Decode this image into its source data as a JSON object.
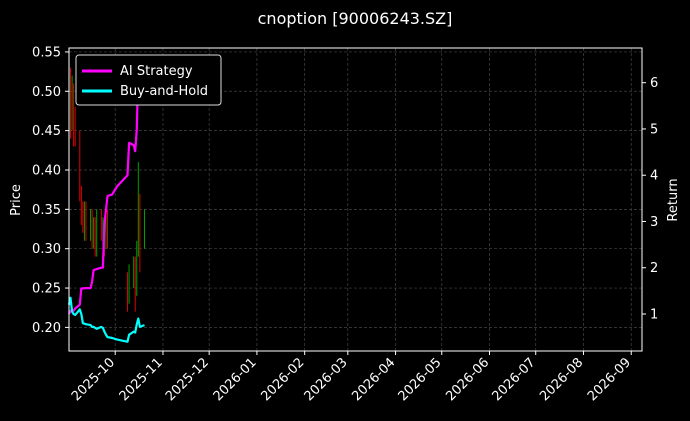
{
  "chart_data": {
    "type": "line",
    "title": "cnoption [90006243.SZ]",
    "ylabel": "Price",
    "y2label": "Return",
    "legend_placement": "top-left",
    "grid": true,
    "x_range": [
      "2025-09-01",
      "2026-09-08"
    ],
    "ylim": [
      0.17,
      0.555
    ],
    "y2lim": [
      0.2,
      6.75
    ],
    "x_ticks": [
      "2025-10",
      "2025-11",
      "2025-12",
      "2026-01",
      "2026-02",
      "2026-03",
      "2026-04",
      "2026-05",
      "2026-06",
      "2026-07",
      "2026-08",
      "2026-09"
    ],
    "y_ticks": [
      "0.20",
      "0.25",
      "0.30",
      "0.35",
      "0.40",
      "0.45",
      "0.50",
      "0.55"
    ],
    "y2_ticks": [
      "1",
      "2",
      "3",
      "4",
      "5",
      "6"
    ],
    "colors": {
      "background": "#000000",
      "grid": "#444444",
      "up": "#00a000",
      "down": "#e00000",
      "ai": "#ff00ff",
      "bh": "#00ffff"
    },
    "candles": [
      {
        "date": "2025-09-01",
        "open": 0.42,
        "close": 0.52,
        "high": 0.54,
        "low": 0.4
      },
      {
        "date": "2025-09-02",
        "open": 0.52,
        "close": 0.47,
        "high": 0.53,
        "low": 0.44
      },
      {
        "date": "2025-09-03",
        "open": 0.47,
        "close": 0.5,
        "high": 0.52,
        "low": 0.45
      },
      {
        "date": "2025-09-04",
        "open": 0.5,
        "close": 0.46,
        "high": 0.51,
        "low": 0.43
      },
      {
        "date": "2025-09-05",
        "open": 0.46,
        "close": 0.44,
        "high": 0.48,
        "low": 0.43
      },
      {
        "date": "2025-09-08",
        "open": 0.44,
        "close": 0.38,
        "high": 0.45,
        "low": 0.36
      },
      {
        "date": "2025-09-09",
        "open": 0.37,
        "close": 0.35,
        "high": 0.38,
        "low": 0.33
      },
      {
        "date": "2025-09-10",
        "open": 0.35,
        "close": 0.33,
        "high": 0.36,
        "low": 0.32
      },
      {
        "date": "2025-09-11",
        "open": 0.33,
        "close": 0.35,
        "high": 0.36,
        "low": 0.31
      },
      {
        "date": "2025-09-12",
        "open": 0.35,
        "close": 0.32,
        "high": 0.36,
        "low": 0.31
      },
      {
        "date": "2025-09-15",
        "open": 0.32,
        "close": 0.34,
        "high": 0.35,
        "low": 0.31
      },
      {
        "date": "2025-09-16",
        "open": 0.34,
        "close": 0.31,
        "high": 0.35,
        "low": 0.3
      },
      {
        "date": "2025-09-17",
        "open": 0.31,
        "close": 0.33,
        "high": 0.34,
        "low": 0.3
      },
      {
        "date": "2025-09-18",
        "open": 0.33,
        "close": 0.3,
        "high": 0.34,
        "low": 0.29
      },
      {
        "date": "2025-09-19",
        "open": 0.3,
        "close": 0.34,
        "high": 0.35,
        "low": 0.29
      },
      {
        "date": "2025-09-22",
        "open": 0.34,
        "close": 0.32,
        "high": 0.35,
        "low": 0.31
      },
      {
        "date": "2025-09-23",
        "open": 0.32,
        "close": 0.33,
        "high": 0.34,
        "low": 0.3
      },
      {
        "date": "2025-09-24",
        "open": 0.33,
        "close": 0.31,
        "high": 0.34,
        "low": 0.29
      },
      {
        "date": "2025-09-25",
        "open": 0.31,
        "close": 0.34,
        "high": 0.35,
        "low": 0.3
      },
      {
        "date": "2025-09-26",
        "open": 0.34,
        "close": 0.31,
        "high": 0.35,
        "low": 0.3
      },
      {
        "date": "2025-10-09",
        "open": 0.26,
        "close": 0.24,
        "high": 0.27,
        "low": 0.22
      },
      {
        "date": "2025-10-10",
        "open": 0.24,
        "close": 0.26,
        "high": 0.28,
        "low": 0.23
      },
      {
        "date": "2025-10-13",
        "open": 0.26,
        "close": 0.28,
        "high": 0.29,
        "low": 0.25
      },
      {
        "date": "2025-10-14",
        "open": 0.28,
        "close": 0.25,
        "high": 0.29,
        "low": 0.22
      },
      {
        "date": "2025-10-15",
        "open": 0.25,
        "close": 0.3,
        "high": 0.31,
        "low": 0.24
      },
      {
        "date": "2025-10-16",
        "open": 0.3,
        "close": 0.39,
        "high": 0.41,
        "low": 0.29
      },
      {
        "date": "2025-10-17",
        "open": 0.36,
        "close": 0.33,
        "high": 0.37,
        "low": 0.27
      },
      {
        "date": "2025-10-20",
        "open": 0.31,
        "close": 0.34,
        "high": 0.35,
        "low": 0.3
      }
    ],
    "series": [
      {
        "name": "AI Strategy",
        "values": [
          {
            "date": "2025-09-01",
            "value": 1.0
          },
          {
            "date": "2025-09-02",
            "value": 1.07
          },
          {
            "date": "2025-09-04",
            "value": 1.07
          },
          {
            "date": "2025-09-05",
            "value": 1.12
          },
          {
            "date": "2025-09-08",
            "value": 1.2
          },
          {
            "date": "2025-09-09",
            "value": 1.55
          },
          {
            "date": "2025-09-12",
            "value": 1.56
          },
          {
            "date": "2025-09-15",
            "value": 1.56
          },
          {
            "date": "2025-09-16",
            "value": 1.7
          },
          {
            "date": "2025-09-17",
            "value": 1.95
          },
          {
            "date": "2025-09-19",
            "value": 1.97
          },
          {
            "date": "2025-09-22",
            "value": 2.0
          },
          {
            "date": "2025-09-23",
            "value": 2.0
          },
          {
            "date": "2025-09-24",
            "value": 2.95
          },
          {
            "date": "2025-09-25",
            "value": 3.25
          },
          {
            "date": "2025-09-26",
            "value": 3.55
          },
          {
            "date": "2025-09-29",
            "value": 3.58
          },
          {
            "date": "2025-10-02",
            "value": 3.75
          },
          {
            "date": "2025-10-09",
            "value": 4.0
          },
          {
            "date": "2025-10-10",
            "value": 4.7
          },
          {
            "date": "2025-10-13",
            "value": 4.65
          },
          {
            "date": "2025-10-14",
            "value": 4.52
          },
          {
            "date": "2025-10-15",
            "value": 5.0
          },
          {
            "date": "2025-10-16",
            "value": 6.35
          },
          {
            "date": "2025-10-17",
            "value": 6.2
          },
          {
            "date": "2025-10-20",
            "value": 6.3
          }
        ]
      },
      {
        "name": "Buy-and-Hold",
        "values": [
          {
            "date": "2025-09-01",
            "value": 1.2
          },
          {
            "date": "2025-09-02",
            "value": 1.35
          },
          {
            "date": "2025-09-03",
            "value": 1.05
          },
          {
            "date": "2025-09-04",
            "value": 1.0
          },
          {
            "date": "2025-09-05",
            "value": 0.98
          },
          {
            "date": "2025-09-08",
            "value": 1.1
          },
          {
            "date": "2025-09-09",
            "value": 1.0
          },
          {
            "date": "2025-09-10",
            "value": 0.8
          },
          {
            "date": "2025-09-12",
            "value": 0.78
          },
          {
            "date": "2025-09-15",
            "value": 0.76
          },
          {
            "date": "2025-09-16",
            "value": 0.72
          },
          {
            "date": "2025-09-17",
            "value": 0.72
          },
          {
            "date": "2025-09-19",
            "value": 0.68
          },
          {
            "date": "2025-09-22",
            "value": 0.72
          },
          {
            "date": "2025-09-23",
            "value": 0.7
          },
          {
            "date": "2025-09-24",
            "value": 0.62
          },
          {
            "date": "2025-09-25",
            "value": 0.55
          },
          {
            "date": "2025-09-26",
            "value": 0.5
          },
          {
            "date": "2025-09-29",
            "value": 0.48
          },
          {
            "date": "2025-10-02",
            "value": 0.45
          },
          {
            "date": "2025-10-06",
            "value": 0.42
          },
          {
            "date": "2025-10-09",
            "value": 0.4
          },
          {
            "date": "2025-10-10",
            "value": 0.55
          },
          {
            "date": "2025-10-13",
            "value": 0.62
          },
          {
            "date": "2025-10-14",
            "value": 0.6
          },
          {
            "date": "2025-10-15",
            "value": 0.78
          },
          {
            "date": "2025-10-16",
            "value": 0.9
          },
          {
            "date": "2025-10-17",
            "value": 0.72
          },
          {
            "date": "2025-10-20",
            "value": 0.76
          }
        ]
      }
    ]
  }
}
